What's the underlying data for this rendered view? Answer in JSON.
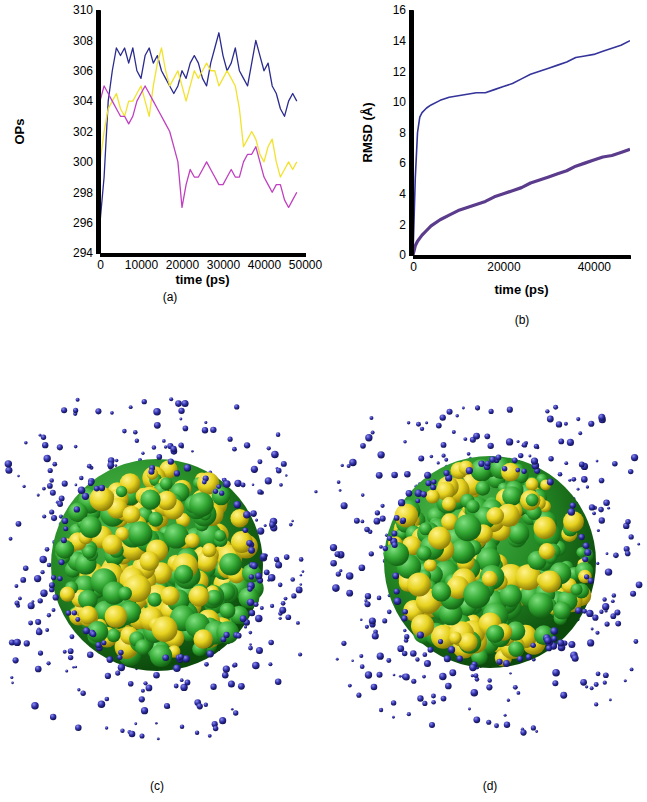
{
  "chart_data": [
    {
      "type": "line",
      "caption": "(a)",
      "xlabel": "time (ps)",
      "ylabel": "OPs",
      "xlim": [
        0,
        50000
      ],
      "xticks": [
        0,
        10000,
        20000,
        30000,
        40000,
        50000
      ],
      "ylim": [
        294,
        310
      ],
      "yticks": [
        294,
        296,
        298,
        300,
        302,
        304,
        306,
        308,
        310
      ],
      "x": [
        0,
        1000,
        2000,
        3000,
        4000,
        5000,
        6000,
        7000,
        8000,
        9000,
        10000,
        11000,
        12000,
        13000,
        14000,
        15000,
        16000,
        17000,
        18000,
        19000,
        20000,
        21000,
        22000,
        23000,
        24000,
        25000,
        26000,
        27000,
        28000,
        29000,
        30000,
        31000,
        32000,
        33000,
        34000,
        35000,
        36000,
        37000,
        38000,
        39000,
        40000,
        41000,
        42000,
        43000,
        44000,
        45000,
        46000,
        47000,
        48000
      ],
      "series": [
        {
          "color": "#2b2b8f",
          "values": [
            296,
            299,
            304,
            306,
            307.5,
            307,
            307.5,
            306.5,
            307.5,
            306,
            305.5,
            307,
            307.5,
            306.5,
            307,
            306,
            305.5,
            305,
            304.5,
            305,
            306,
            305.5,
            306.5,
            307,
            306.5,
            305.5,
            305,
            306.5,
            307.5,
            308.5,
            307,
            306,
            306.5,
            307.5,
            306,
            305.5,
            305,
            306.5,
            308,
            307,
            306,
            306.5,
            305,
            304.5,
            303.5,
            303,
            304,
            304.5,
            304
          ]
        },
        {
          "color": "#f2e22e",
          "values": [
            300,
            302,
            303.5,
            304,
            304.5,
            303.5,
            303,
            304,
            304,
            304.5,
            305,
            304,
            303,
            305,
            306.5,
            307.5,
            306,
            305,
            305.5,
            306,
            305,
            304,
            305,
            306,
            305.5,
            306,
            306.5,
            306,
            306,
            305,
            305.5,
            306,
            305.5,
            305,
            303.5,
            301,
            301.5,
            302,
            301.5,
            300.5,
            300,
            301,
            301.5,
            300,
            299,
            299.5,
            300,
            299.5,
            300
          ]
        },
        {
          "color": "#c03fc0",
          "values": [
            304,
            305,
            304.5,
            304,
            303.5,
            303,
            303,
            302.5,
            303,
            304,
            304.5,
            305,
            304.5,
            304,
            303.5,
            303,
            302.5,
            302,
            301,
            300,
            297,
            298.5,
            299.5,
            299,
            299,
            299.5,
            300,
            299.5,
            299,
            298.5,
            298.5,
            299,
            299.5,
            299,
            299,
            300,
            300.5,
            300.5,
            301,
            300,
            299,
            298.5,
            298,
            298.5,
            298.5,
            297.5,
            297,
            297.5,
            298
          ]
        }
      ]
    },
    {
      "type": "line",
      "caption": "(b)",
      "xlabel": "time (ps)",
      "ylabel": "RMSD (Å)",
      "xlim": [
        0,
        48000
      ],
      "xticks": [
        0,
        20000,
        40000
      ],
      "ylim": [
        0,
        16
      ],
      "yticks": [
        0,
        2,
        4,
        6,
        8,
        10,
        12,
        14,
        16
      ],
      "x": [
        0,
        500,
        1000,
        1500,
        2000,
        3000,
        4000,
        6000,
        8000,
        10000,
        12000,
        14000,
        16000,
        18000,
        20000,
        22000,
        24000,
        26000,
        28000,
        30000,
        32000,
        34000,
        36000,
        38000,
        40000,
        42000,
        44000,
        46000,
        48000
      ],
      "series": [
        {
          "color": "#34349a",
          "values": [
            0,
            5,
            8,
            9,
            9.3,
            9.6,
            9.8,
            10.1,
            10.3,
            10.4,
            10.5,
            10.6,
            10.6,
            10.8,
            11,
            11.2,
            11.5,
            11.8,
            12,
            12.2,
            12.4,
            12.6,
            12.9,
            13,
            13.1,
            13.3,
            13.5,
            13.7,
            14
          ]
        },
        {
          "color": "#5b3b8c",
          "values": [
            0,
            0.6,
            0.9,
            1.1,
            1.3,
            1.6,
            1.9,
            2.3,
            2.6,
            2.9,
            3.1,
            3.3,
            3.5,
            3.8,
            4,
            4.2,
            4.4,
            4.7,
            4.9,
            5.1,
            5.3,
            5.5,
            5.8,
            6,
            6.2,
            6.4,
            6.5,
            6.7,
            6.9
          ]
        }
      ]
    }
  ],
  "images": [
    {
      "caption": "(c)"
    },
    {
      "caption": "(d)"
    }
  ]
}
